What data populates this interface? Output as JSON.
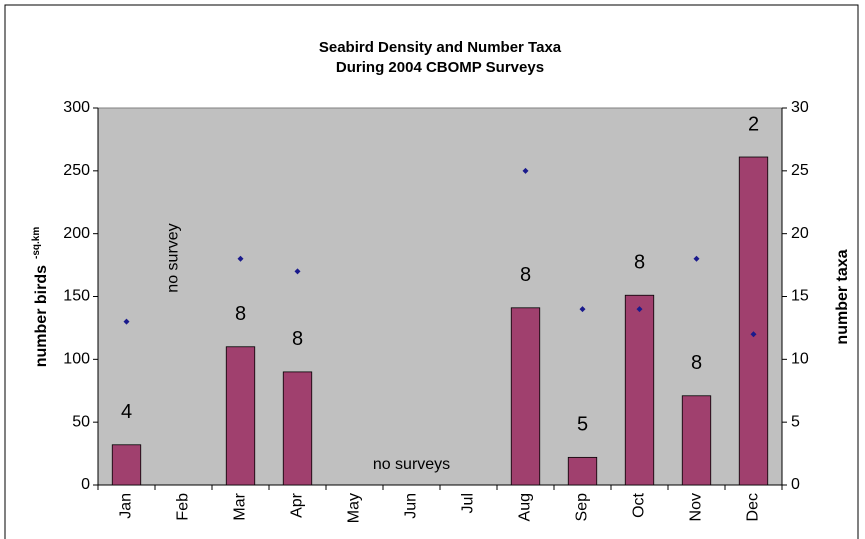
{
  "chart_data": {
    "type": "bar",
    "title": [
      "Seabird Density and Number Taxa",
      "During 2004 CBOMP Surveys"
    ],
    "y_label": "number birds",
    "y_label_sup": "-sq.km",
    "y2_label": "number taxa",
    "categories": [
      "Jan",
      "Feb",
      "Mar",
      "Apr",
      "May",
      "Jun",
      "Jul",
      "Aug",
      "Sep",
      "Oct",
      "Nov",
      "Dec"
    ],
    "series": [
      {
        "type": "bar",
        "axis": "y",
        "color": "#a0406e",
        "values": [
          32,
          null,
          110,
          90,
          null,
          null,
          null,
          141,
          22,
          151,
          71,
          261
        ],
        "bar_labels": [
          "4",
          null,
          "8",
          "8",
          null,
          null,
          null,
          "8",
          "5",
          "8",
          "8",
          "2"
        ]
      },
      {
        "type": "scatter",
        "axis": "y2",
        "color": "#1a1a8c",
        "values": [
          13,
          null,
          18,
          17,
          null,
          null,
          null,
          25,
          14,
          14,
          18,
          12
        ]
      }
    ],
    "annotations": [
      {
        "text": "no survey",
        "category": 1,
        "rotate": true
      },
      {
        "text": "no surveys",
        "category": 5,
        "rotate": false
      }
    ],
    "ylim": [
      0,
      300
    ],
    "yticks": [
      0,
      50,
      100,
      150,
      200,
      250,
      300
    ],
    "y2lim": [
      0,
      30
    ],
    "y2ticks": [
      0,
      5,
      10,
      15,
      20,
      25,
      30
    ],
    "background": "#c0c0c0"
  }
}
